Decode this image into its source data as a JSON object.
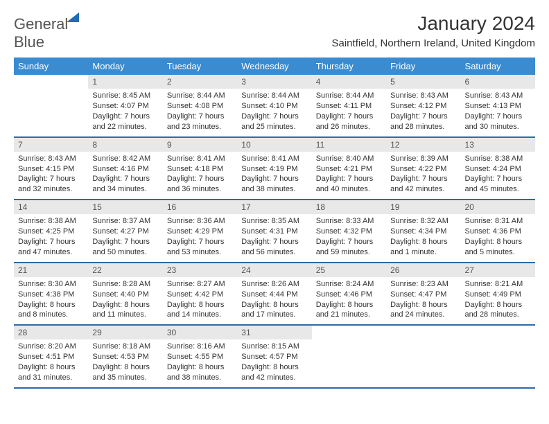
{
  "logo": {
    "text1": "General",
    "text2": "Blue"
  },
  "title": "January 2024",
  "location": "Saintfield, Northern Ireland, United Kingdom",
  "colors": {
    "header_bg": "#3a8bd0",
    "header_text": "#ffffff",
    "daynum_bg": "#e8e8e8",
    "daynum_text": "#555555",
    "border": "#2d6aa8",
    "body_text": "#333333",
    "logo_grey": "#555555",
    "logo_blue": "#1f6db5"
  },
  "day_headers": [
    "Sunday",
    "Monday",
    "Tuesday",
    "Wednesday",
    "Thursday",
    "Friday",
    "Saturday"
  ],
  "weeks": [
    [
      {
        "blank": true
      },
      {
        "num": "1",
        "sunrise": "Sunrise: 8:45 AM",
        "sunset": "Sunset: 4:07 PM",
        "day1": "Daylight: 7 hours",
        "day2": "and 22 minutes."
      },
      {
        "num": "2",
        "sunrise": "Sunrise: 8:44 AM",
        "sunset": "Sunset: 4:08 PM",
        "day1": "Daylight: 7 hours",
        "day2": "and 23 minutes."
      },
      {
        "num": "3",
        "sunrise": "Sunrise: 8:44 AM",
        "sunset": "Sunset: 4:10 PM",
        "day1": "Daylight: 7 hours",
        "day2": "and 25 minutes."
      },
      {
        "num": "4",
        "sunrise": "Sunrise: 8:44 AM",
        "sunset": "Sunset: 4:11 PM",
        "day1": "Daylight: 7 hours",
        "day2": "and 26 minutes."
      },
      {
        "num": "5",
        "sunrise": "Sunrise: 8:43 AM",
        "sunset": "Sunset: 4:12 PM",
        "day1": "Daylight: 7 hours",
        "day2": "and 28 minutes."
      },
      {
        "num": "6",
        "sunrise": "Sunrise: 8:43 AM",
        "sunset": "Sunset: 4:13 PM",
        "day1": "Daylight: 7 hours",
        "day2": "and 30 minutes."
      }
    ],
    [
      {
        "num": "7",
        "sunrise": "Sunrise: 8:43 AM",
        "sunset": "Sunset: 4:15 PM",
        "day1": "Daylight: 7 hours",
        "day2": "and 32 minutes."
      },
      {
        "num": "8",
        "sunrise": "Sunrise: 8:42 AM",
        "sunset": "Sunset: 4:16 PM",
        "day1": "Daylight: 7 hours",
        "day2": "and 34 minutes."
      },
      {
        "num": "9",
        "sunrise": "Sunrise: 8:41 AM",
        "sunset": "Sunset: 4:18 PM",
        "day1": "Daylight: 7 hours",
        "day2": "and 36 minutes."
      },
      {
        "num": "10",
        "sunrise": "Sunrise: 8:41 AM",
        "sunset": "Sunset: 4:19 PM",
        "day1": "Daylight: 7 hours",
        "day2": "and 38 minutes."
      },
      {
        "num": "11",
        "sunrise": "Sunrise: 8:40 AM",
        "sunset": "Sunset: 4:21 PM",
        "day1": "Daylight: 7 hours",
        "day2": "and 40 minutes."
      },
      {
        "num": "12",
        "sunrise": "Sunrise: 8:39 AM",
        "sunset": "Sunset: 4:22 PM",
        "day1": "Daylight: 7 hours",
        "day2": "and 42 minutes."
      },
      {
        "num": "13",
        "sunrise": "Sunrise: 8:38 AM",
        "sunset": "Sunset: 4:24 PM",
        "day1": "Daylight: 7 hours",
        "day2": "and 45 minutes."
      }
    ],
    [
      {
        "num": "14",
        "sunrise": "Sunrise: 8:38 AM",
        "sunset": "Sunset: 4:25 PM",
        "day1": "Daylight: 7 hours",
        "day2": "and 47 minutes."
      },
      {
        "num": "15",
        "sunrise": "Sunrise: 8:37 AM",
        "sunset": "Sunset: 4:27 PM",
        "day1": "Daylight: 7 hours",
        "day2": "and 50 minutes."
      },
      {
        "num": "16",
        "sunrise": "Sunrise: 8:36 AM",
        "sunset": "Sunset: 4:29 PM",
        "day1": "Daylight: 7 hours",
        "day2": "and 53 minutes."
      },
      {
        "num": "17",
        "sunrise": "Sunrise: 8:35 AM",
        "sunset": "Sunset: 4:31 PM",
        "day1": "Daylight: 7 hours",
        "day2": "and 56 minutes."
      },
      {
        "num": "18",
        "sunrise": "Sunrise: 8:33 AM",
        "sunset": "Sunset: 4:32 PM",
        "day1": "Daylight: 7 hours",
        "day2": "and 59 minutes."
      },
      {
        "num": "19",
        "sunrise": "Sunrise: 8:32 AM",
        "sunset": "Sunset: 4:34 PM",
        "day1": "Daylight: 8 hours",
        "day2": "and 1 minute."
      },
      {
        "num": "20",
        "sunrise": "Sunrise: 8:31 AM",
        "sunset": "Sunset: 4:36 PM",
        "day1": "Daylight: 8 hours",
        "day2": "and 5 minutes."
      }
    ],
    [
      {
        "num": "21",
        "sunrise": "Sunrise: 8:30 AM",
        "sunset": "Sunset: 4:38 PM",
        "day1": "Daylight: 8 hours",
        "day2": "and 8 minutes."
      },
      {
        "num": "22",
        "sunrise": "Sunrise: 8:28 AM",
        "sunset": "Sunset: 4:40 PM",
        "day1": "Daylight: 8 hours",
        "day2": "and 11 minutes."
      },
      {
        "num": "23",
        "sunrise": "Sunrise: 8:27 AM",
        "sunset": "Sunset: 4:42 PM",
        "day1": "Daylight: 8 hours",
        "day2": "and 14 minutes."
      },
      {
        "num": "24",
        "sunrise": "Sunrise: 8:26 AM",
        "sunset": "Sunset: 4:44 PM",
        "day1": "Daylight: 8 hours",
        "day2": "and 17 minutes."
      },
      {
        "num": "25",
        "sunrise": "Sunrise: 8:24 AM",
        "sunset": "Sunset: 4:46 PM",
        "day1": "Daylight: 8 hours",
        "day2": "and 21 minutes."
      },
      {
        "num": "26",
        "sunrise": "Sunrise: 8:23 AM",
        "sunset": "Sunset: 4:47 PM",
        "day1": "Daylight: 8 hours",
        "day2": "and 24 minutes."
      },
      {
        "num": "27",
        "sunrise": "Sunrise: 8:21 AM",
        "sunset": "Sunset: 4:49 PM",
        "day1": "Daylight: 8 hours",
        "day2": "and 28 minutes."
      }
    ],
    [
      {
        "num": "28",
        "sunrise": "Sunrise: 8:20 AM",
        "sunset": "Sunset: 4:51 PM",
        "day1": "Daylight: 8 hours",
        "day2": "and 31 minutes."
      },
      {
        "num": "29",
        "sunrise": "Sunrise: 8:18 AM",
        "sunset": "Sunset: 4:53 PM",
        "day1": "Daylight: 8 hours",
        "day2": "and 35 minutes."
      },
      {
        "num": "30",
        "sunrise": "Sunrise: 8:16 AM",
        "sunset": "Sunset: 4:55 PM",
        "day1": "Daylight: 8 hours",
        "day2": "and 38 minutes."
      },
      {
        "num": "31",
        "sunrise": "Sunrise: 8:15 AM",
        "sunset": "Sunset: 4:57 PM",
        "day1": "Daylight: 8 hours",
        "day2": "and 42 minutes."
      },
      {
        "blank": true
      },
      {
        "blank": true
      },
      {
        "blank": true
      }
    ]
  ]
}
